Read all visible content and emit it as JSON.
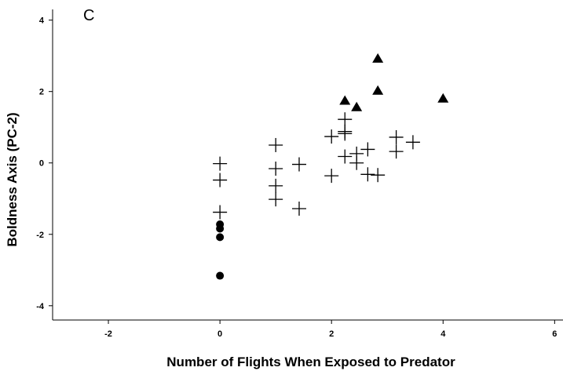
{
  "chart_data": {
    "type": "scatter",
    "panel_label": "C",
    "title": "",
    "xlabel": "Number of Flights When Exposed to Predator",
    "ylabel": "Boldness Axis (PC-2)",
    "xlim": [
      -3,
      6.15
    ],
    "ylim": [
      -4.4,
      4.3
    ],
    "x_ticks": [
      -2,
      0,
      2,
      4,
      6
    ],
    "y_ticks": [
      -4,
      -2,
      0,
      2,
      4
    ],
    "grid": false,
    "legend": "none",
    "colors": {
      "marker": "#000000",
      "axis": "#000000"
    },
    "series": [
      {
        "marker": "circle",
        "points": [
          [
            0,
            -1.72
          ],
          [
            0,
            -1.84
          ],
          [
            0,
            -2.08
          ],
          [
            0,
            -3.16
          ]
        ]
      },
      {
        "marker": "plus",
        "points": [
          [
            0,
            -0.02
          ],
          [
            0,
            -0.48
          ],
          [
            0,
            -1.38
          ],
          [
            1,
            0.5
          ],
          [
            1,
            -0.16
          ],
          [
            1,
            -0.64
          ],
          [
            1,
            -1.02
          ],
          [
            1.42,
            -0.04
          ],
          [
            1.42,
            -1.28
          ],
          [
            2,
            0.74
          ],
          [
            2,
            -0.36
          ],
          [
            2.24,
            1.22
          ],
          [
            2.24,
            0.88
          ],
          [
            2.24,
            0.82
          ],
          [
            2.24,
            0.18
          ],
          [
            2.45,
            0.26
          ],
          [
            2.45,
            0.0
          ],
          [
            2.65,
            0.38
          ],
          [
            2.65,
            -0.32
          ],
          [
            2.83,
            -0.34
          ],
          [
            3.16,
            0.72
          ],
          [
            3.16,
            0.32
          ],
          [
            3.46,
            0.58
          ]
        ]
      },
      {
        "marker": "triangle",
        "points": [
          [
            2.24,
            1.74
          ],
          [
            2.45,
            1.56
          ],
          [
            2.83,
            2.92
          ],
          [
            2.83,
            2.02
          ],
          [
            4.0,
            1.8
          ]
        ]
      }
    ]
  }
}
